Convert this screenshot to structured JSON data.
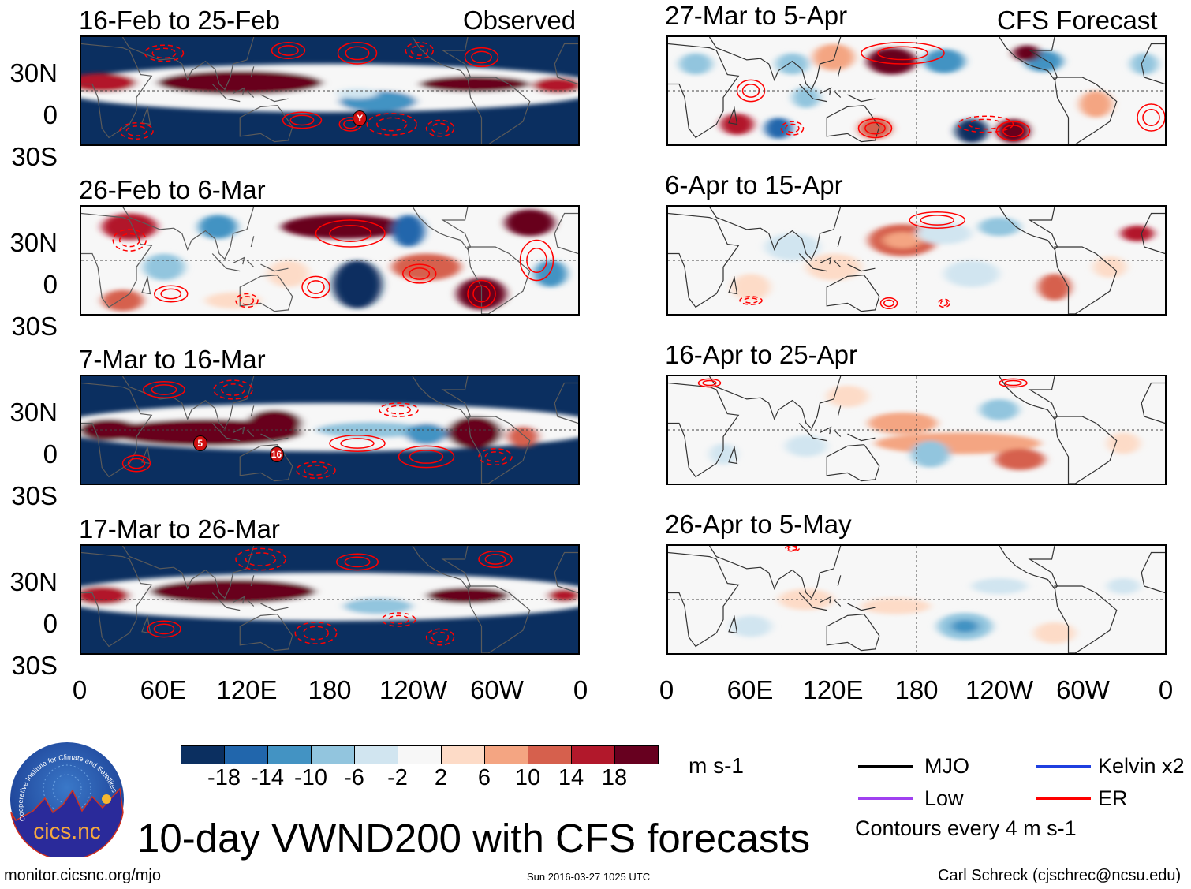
{
  "panels": {
    "observed_label": "Observed",
    "forecast_label": "CFS Forecast",
    "left": [
      {
        "title": "16-Feb to 25-Feb",
        "markers": [
          "Y"
        ]
      },
      {
        "title": "26-Feb to 6-Mar",
        "markers": []
      },
      {
        "title": "7-Mar to 16-Mar",
        "markers": [
          "5",
          "16"
        ]
      },
      {
        "title": "17-Mar to 26-Mar",
        "markers": []
      }
    ],
    "right": [
      {
        "title": "27-Mar to 5-Apr"
      },
      {
        "title": "6-Apr to 15-Apr"
      },
      {
        "title": "16-Apr to 25-Apr"
      },
      {
        "title": "26-Apr to 5-May"
      }
    ]
  },
  "axes": {
    "y_labels": [
      "30N",
      "0",
      "30S"
    ],
    "x_labels": [
      "0",
      "60E",
      "120E",
      "180",
      "120W",
      "60W",
      "0"
    ]
  },
  "colorbar": {
    "colors": [
      "#0b2f60",
      "#2166ac",
      "#4393c3",
      "#92c5de",
      "#d1e5f0",
      "#f7f7f7",
      "#fddbc7",
      "#f4a582",
      "#d6604d",
      "#b2182b",
      "#67001f"
    ],
    "labels": [
      "-18",
      "-14",
      "-10",
      "-6",
      "-2",
      "2",
      "6",
      "10",
      "14",
      "18"
    ],
    "units": "m s-1"
  },
  "legend": {
    "items": [
      {
        "label": "MJO",
        "color": "#000000"
      },
      {
        "label": "Kelvin x2",
        "color": "#1f3fe0"
      },
      {
        "label": "Low",
        "color": "#a040f0"
      },
      {
        "label": "ER",
        "color": "#ff0000"
      }
    ],
    "contours_note": "Contours every 4 m s-1"
  },
  "logo": {
    "text": "cics.nc",
    "ring_text": "Cooperative Institute for Climate and Satellites"
  },
  "title": "10-day VWND200 with CFS forecasts",
  "footer": {
    "url": "monitor.cicsnc.org/mjo",
    "timestamp": "Sun 2016-03-27 1025 UTC",
    "credit": "Carl Schreck (cjschrec@ncsu.edu)"
  }
}
